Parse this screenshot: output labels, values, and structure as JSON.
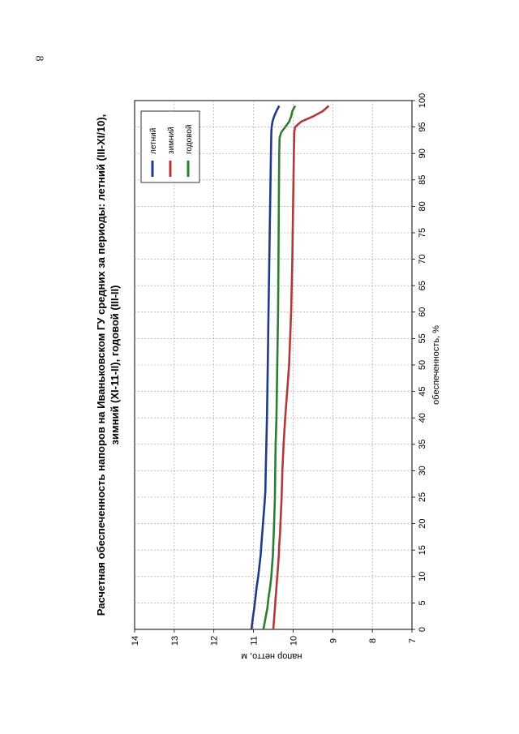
{
  "page": {
    "number": "8"
  },
  "chart_data": {
    "type": "line",
    "title_line1": "Расчетная обеспеченность напоров на Иваньковском ГУ средних за периоды: летний (III-XI/10),",
    "title_line2": "зимний (XI-11-II), годовой (III-II)",
    "xlabel": "обеспеченность, %",
    "ylabel": "напор нетто, м",
    "xlim": [
      0,
      100
    ],
    "ylim": [
      7,
      14
    ],
    "xticks": [
      "0",
      "5",
      "10",
      "15",
      "20",
      "25",
      "30",
      "35",
      "40",
      "45",
      "50",
      "55",
      "60",
      "65",
      "70",
      "75",
      "80",
      "85",
      "90",
      "95",
      "100"
    ],
    "yticks": [
      "7",
      "8",
      "9",
      "10",
      "11",
      "12",
      "13",
      "14"
    ],
    "grid": true,
    "legend_position": "top-right",
    "series": [
      {
        "name": "летний",
        "color": "#1f3a8c",
        "x": [
          0,
          2,
          4,
          6,
          8,
          10,
          12,
          14,
          16,
          18,
          20,
          22,
          24,
          26,
          30,
          40,
          50,
          60,
          70,
          80,
          90,
          94,
          95,
          96,
          97,
          98,
          99
        ],
        "y": [
          11.05,
          11.02,
          10.98,
          10.95,
          10.92,
          10.88,
          10.85,
          10.82,
          10.8,
          10.78,
          10.76,
          10.74,
          10.72,
          10.7,
          10.69,
          10.66,
          10.64,
          10.62,
          10.6,
          10.58,
          10.56,
          10.55,
          10.54,
          10.52,
          10.48,
          10.42,
          10.35
        ]
      },
      {
        "name": "зимний",
        "color": "#b03a3a",
        "x": [
          0,
          2,
          4,
          6,
          8,
          10,
          12,
          14,
          16,
          18,
          20,
          25,
          30,
          35,
          40,
          45,
          50,
          60,
          70,
          80,
          90,
          94,
          95,
          96,
          97,
          98,
          99
        ],
        "y": [
          10.5,
          10.48,
          10.46,
          10.44,
          10.42,
          10.4,
          10.38,
          10.36,
          10.35,
          10.33,
          10.32,
          10.29,
          10.27,
          10.24,
          10.2,
          10.15,
          10.1,
          10.05,
          10.02,
          10.0,
          9.98,
          9.97,
          9.95,
          9.8,
          9.5,
          9.25,
          9.1
        ]
      },
      {
        "name": "годовой",
        "color": "#2e7d32",
        "x": [
          0,
          2,
          4,
          6,
          8,
          10,
          12,
          14,
          16,
          18,
          20,
          25,
          30,
          35,
          40,
          50,
          60,
          70,
          80,
          90,
          93,
          94,
          95,
          96,
          97,
          98,
          99
        ],
        "y": [
          10.75,
          10.7,
          10.65,
          10.62,
          10.58,
          10.55,
          10.53,
          10.51,
          10.5,
          10.49,
          10.48,
          10.46,
          10.45,
          10.44,
          10.42,
          10.4,
          10.38,
          10.37,
          10.36,
          10.35,
          10.34,
          10.3,
          10.2,
          10.1,
          10.05,
          10.02,
          9.95
        ]
      }
    ]
  }
}
